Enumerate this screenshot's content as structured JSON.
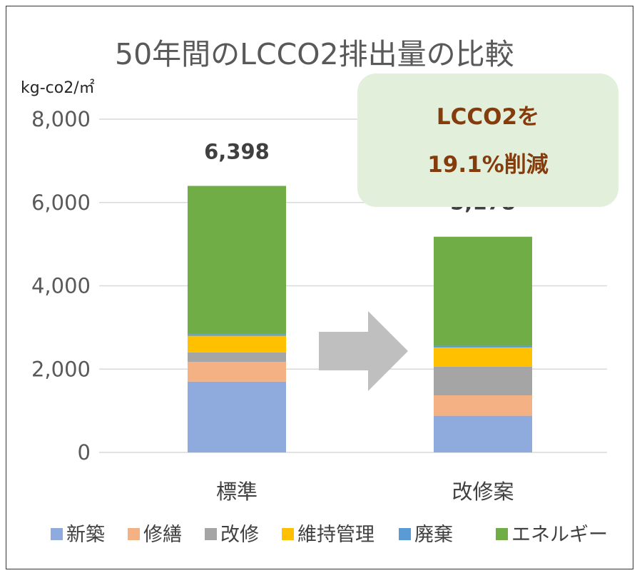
{
  "chart_data": {
    "type": "bar",
    "stacked": true,
    "title": "50年間のLCCO2排出量の比較",
    "ylabel": "kg-co2/㎡",
    "ylim": [
      0,
      8000
    ],
    "yticks": [
      0,
      2000,
      4000,
      6000,
      8000
    ],
    "ytick_labels": [
      "0",
      "2,000",
      "4,000",
      "6,000",
      "8,000"
    ],
    "grid": true,
    "legend_position": "bottom",
    "categories": [
      "標準",
      "改修案"
    ],
    "totals": [
      6398,
      5178
    ],
    "total_labels": [
      "6,398",
      "5,178"
    ],
    "series": [
      {
        "name": "新築",
        "color": "#8faadc",
        "values": [
          1700,
          880
        ]
      },
      {
        "name": "修繕",
        "color": "#f4b183",
        "values": [
          470,
          490
        ]
      },
      {
        "name": "改修",
        "color": "#a5a5a5",
        "values": [
          230,
          690
        ]
      },
      {
        "name": "維持管理",
        "color": "#ffc000",
        "values": [
          400,
          460
        ]
      },
      {
        "name": "廃棄",
        "color": "#5b9bd5",
        "values": [
          40,
          40
        ]
      },
      {
        "name": "エネルギー",
        "color": "#70ad47",
        "values": [
          3558,
          2618
        ]
      }
    ],
    "callout": {
      "lines": [
        "LCCO2を",
        "19.1%削減"
      ],
      "bg_color": "#e2efda",
      "text_color": "#843c0c"
    },
    "arrow_color": "#bfbfbf"
  }
}
